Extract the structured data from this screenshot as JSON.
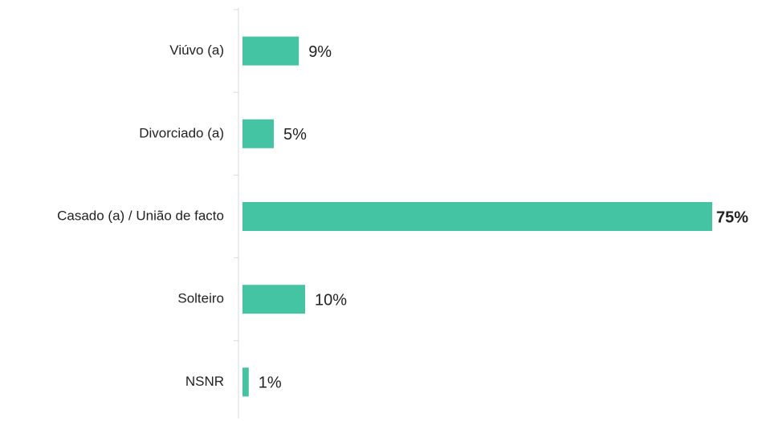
{
  "chart_data": {
    "type": "hbar",
    "categories": [
      "Viúvo (a)",
      "Divorciado (a)",
      "Casado (a) / União de facto",
      "Solteiro",
      "NSNR"
    ],
    "values": [
      9,
      5,
      75,
      10,
      1
    ],
    "value_labels": [
      "9%",
      "5%",
      "75%",
      "10%",
      "1%"
    ],
    "color": "#45c4a4"
  }
}
